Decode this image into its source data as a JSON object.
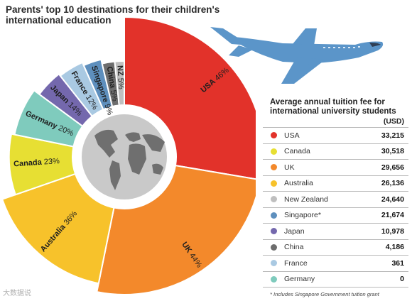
{
  "chart_data": [
    {
      "type": "pie",
      "title": "Parents' top 10 destinations for their children's international education",
      "categories": [
        "USA",
        "UK",
        "Australia",
        "Canada",
        "Germany",
        "Japan",
        "France",
        "Singapore",
        "China",
        "NZ"
      ],
      "values": [
        46,
        44,
        36,
        23,
        20,
        14,
        12,
        9,
        5,
        5
      ],
      "labels": [
        "USA 46%",
        "UK 44%",
        "Australia 36%",
        "Canada 23%",
        "Germany 20%",
        "Japan 14%",
        "France 12%",
        "Singapore 9%",
        "China 5%",
        "NZ 5%"
      ],
      "colors": [
        "#e2322a",
        "#f3892b",
        "#f7c22b",
        "#e7df33",
        "#7fcbbd",
        "#7468ad",
        "#a9c9e2",
        "#5e8fbd",
        "#6d6d6d",
        "#bfbfbf"
      ],
      "center_icon": "world-globe-icon"
    },
    {
      "type": "table",
      "title": "Average annual tuition fee for international university students",
      "unit": "(USD)",
      "rows": [
        {
          "country": "USA",
          "value": "33,215",
          "color": "#e2322a"
        },
        {
          "country": "Canada",
          "value": "30,518",
          "color": "#e7df33"
        },
        {
          "country": "UK",
          "value": "29,656",
          "color": "#f3892b"
        },
        {
          "country": "Australia",
          "value": "26,136",
          "color": "#f7c22b"
        },
        {
          "country": "New Zealand",
          "value": "24,640",
          "color": "#bfbfbf"
        },
        {
          "country": "Singapore*",
          "value": "21,674",
          "color": "#5e8fbd"
        },
        {
          "country": "Japan",
          "value": "10,978",
          "color": "#7468ad"
        },
        {
          "country": "China",
          "value": "4,186",
          "color": "#6d6d6d"
        },
        {
          "country": "France",
          "value": "361",
          "color": "#a9c9e2"
        },
        {
          "country": "Germany",
          "value": "0",
          "color": "#7fcbbd"
        }
      ],
      "footnote": "* Includes Singapore Government tuition grant"
    }
  ],
  "decoration": {
    "plane_icon": "airplane-icon",
    "plane_color": "#5b95c9"
  },
  "watermark": "大数据说"
}
